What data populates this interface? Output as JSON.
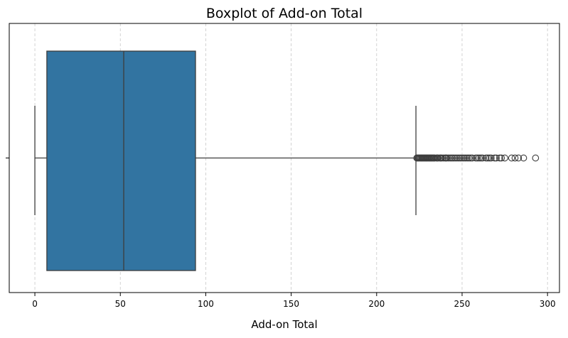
{
  "chart_data": {
    "type": "boxplot",
    "title": "Boxplot of Add-on Total",
    "xlabel": "Add-on Total",
    "ylabel": "",
    "xlim": [
      -15,
      307
    ],
    "xticks": [
      0,
      50,
      100,
      150,
      200,
      250,
      300
    ],
    "grid": true,
    "box_color": "#3274a1",
    "line_color": "#3d3d3d",
    "stats": {
      "whisker_low": 0,
      "q1": 7,
      "median": 52,
      "q3": 94,
      "whisker_high": 223
    },
    "outliers": [
      223.5,
      224,
      224.5,
      225,
      225.5,
      226,
      226.5,
      227,
      227.5,
      228,
      228.5,
      229,
      229.5,
      230,
      230.5,
      231,
      231.5,
      232,
      232.5,
      233,
      233.5,
      234,
      235,
      235.5,
      236,
      237,
      237.5,
      238,
      239,
      240,
      240.5,
      241,
      242,
      243,
      244,
      245,
      246,
      247,
      248,
      249,
      250,
      251,
      252,
      253,
      254,
      255,
      256,
      258,
      259,
      260,
      261,
      262,
      264,
      265,
      266,
      267,
      269,
      270,
      272,
      273,
      275,
      279,
      281,
      283,
      286,
      293
    ]
  }
}
